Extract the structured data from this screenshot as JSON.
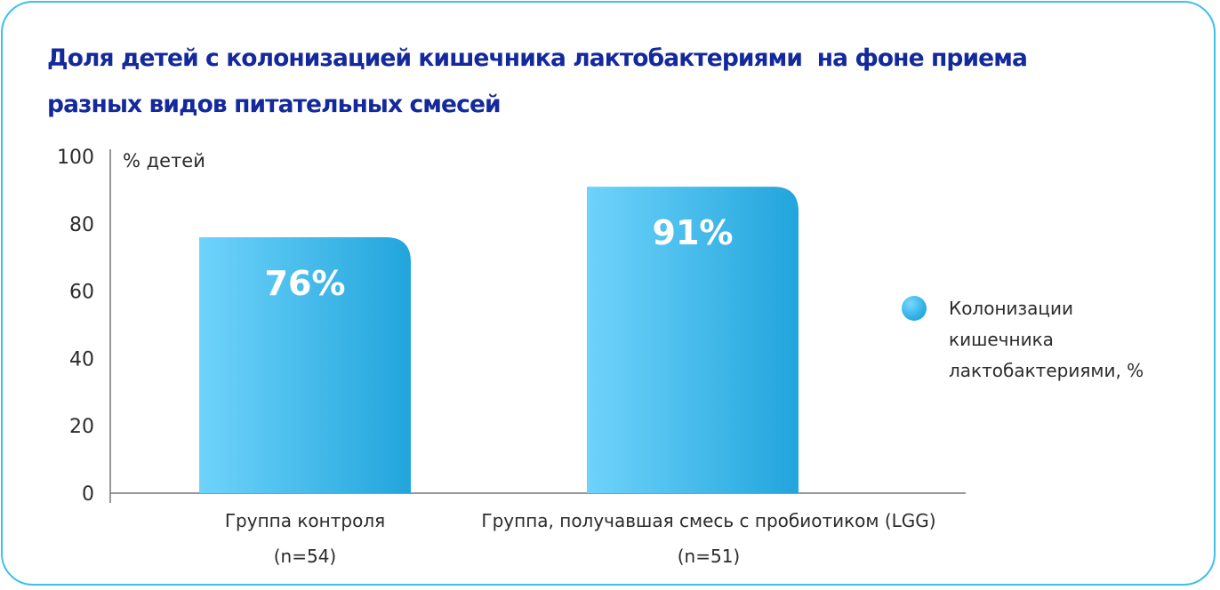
{
  "title_lines": [
    "Доля детей с колонизацией кишечника лактобактериями  на фоне приема",
    "разных видов питательных смесей"
  ],
  "colors": {
    "frame": "#3cc0ec",
    "title": "#142a9c",
    "bar_light": "#6fd3fb",
    "bar_dark": "#21a5dc",
    "text": "#2b2b2b",
    "axis": "#777777"
  },
  "legend": {
    "lines": [
      "Колонизации",
      "кишечника",
      "лактобактериями, %"
    ],
    "icon": "circle-marker"
  },
  "chart_data": {
    "type": "bar",
    "ylabel": "% детей",
    "ylim": [
      0,
      100
    ],
    "yticks": [
      0,
      20,
      40,
      60,
      80,
      100
    ],
    "categories": [
      [
        "Группа контроля",
        "(n=54)"
      ],
      [
        "Группа, получавшая смесь с пробиотиком (LGG)",
        "(n=51)"
      ]
    ],
    "series": [
      {
        "name": "Колонизации кишечника лактобактериями, %",
        "values": [
          76,
          91
        ],
        "labels": [
          "76%",
          "91%"
        ]
      }
    ],
    "grid": false,
    "legend_position": "right"
  }
}
